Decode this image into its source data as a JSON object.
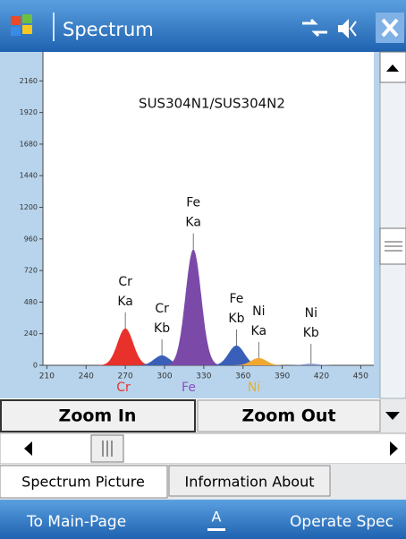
{
  "window": {
    "title": "Spectrum"
  },
  "chart_data": {
    "type": "peaks",
    "title": "SUS304N1/SUS304N2",
    "xlim": [
      207,
      460
    ],
    "ylim": [
      0,
      2380
    ],
    "xticks": [
      210,
      240,
      270,
      300,
      330,
      360,
      390,
      420,
      450
    ],
    "yticks": [
      0,
      240,
      480,
      720,
      960,
      1200,
      1440,
      1680,
      1920,
      2160
    ],
    "series": [
      {
        "name": "Cr",
        "line": "Ka",
        "x": 270,
        "value": 280,
        "color": "#e8312a"
      },
      {
        "name": "Cr",
        "line": "Kb",
        "x": 298,
        "value": 75,
        "color": "#3a5fb8"
      },
      {
        "name": "Fe",
        "line": "Ka",
        "x": 322,
        "value": 880,
        "color": "#7b4aa8"
      },
      {
        "name": "Fe",
        "line": "Kb",
        "x": 355,
        "value": 150,
        "color": "#3a5fb8"
      },
      {
        "name": "Ni",
        "line": "Ka",
        "x": 372,
        "value": 55,
        "color": "#f0a830"
      },
      {
        "name": "Ni",
        "line": "Kb",
        "x": 412,
        "value": 12,
        "color": "#8898d0"
      }
    ],
    "elements": [
      {
        "name": "Cr",
        "color": "#e8312a"
      },
      {
        "name": "Fe",
        "color": "#8a50c0"
      },
      {
        "name": "Ni",
        "color": "#e8b030"
      }
    ]
  },
  "buttons": [
    "Zoom In",
    "Zoom Out"
  ],
  "tabs": [
    "Spectrum Picture",
    "Information About"
  ],
  "menu": {
    "left": "To Main-Page",
    "keyboard": "A",
    "right": "Operate Spec"
  }
}
